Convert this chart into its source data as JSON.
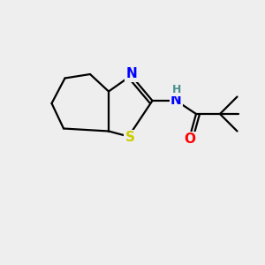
{
  "background_color": "#eeeeee",
  "bond_color": "#000000",
  "bond_width": 1.6,
  "atom_colors": {
    "N": "#0000ff",
    "S": "#cccc00",
    "O": "#ff0000",
    "H": "#4a9090",
    "C": "#000000"
  },
  "font_size_atom": 11,
  "font_size_h": 9,
  "xlim": [
    0,
    10
  ],
  "ylim": [
    0,
    10
  ]
}
